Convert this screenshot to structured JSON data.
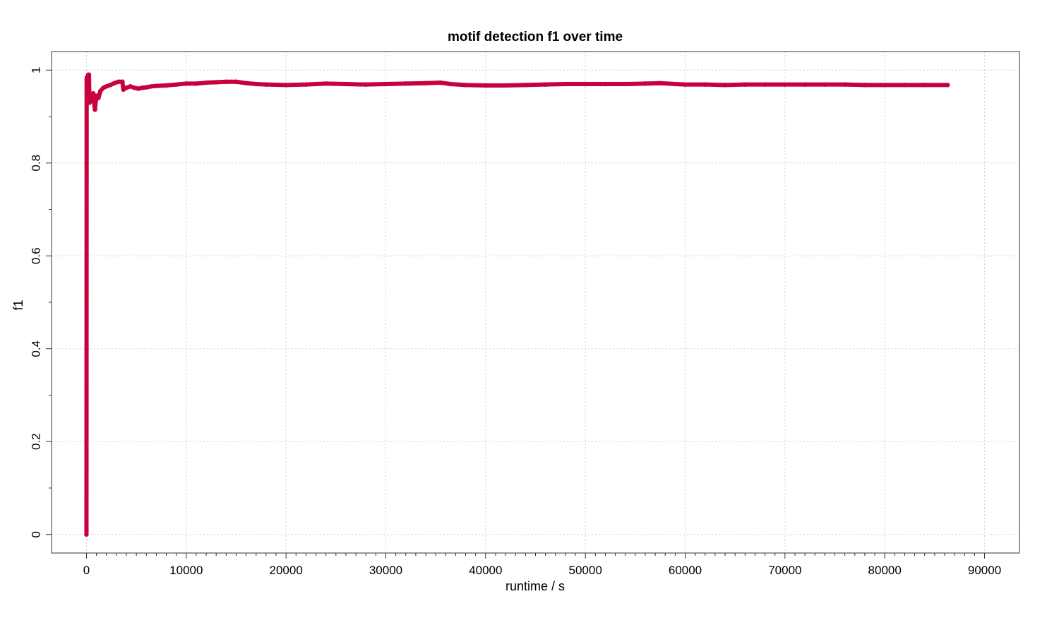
{
  "chart_data": {
    "type": "line",
    "title": "motif detection f1 over time",
    "xlabel": "runtime / s",
    "ylabel": "f1",
    "xlim": [
      -3500,
      93500
    ],
    "ylim": [
      -0.04,
      1.04
    ],
    "xticks": [
      0,
      10000,
      20000,
      30000,
      40000,
      50000,
      60000,
      70000,
      80000,
      90000
    ],
    "xtick_labels": [
      "0",
      "10000",
      "20000",
      "30000",
      "40000",
      "50000",
      "60000",
      "70000",
      "80000",
      "90000"
    ],
    "yticks": [
      0,
      0.2,
      0.4,
      0.6,
      0.8,
      1
    ],
    "ytick_labels": [
      "0",
      "0.2",
      "0.4",
      "0.6",
      "0.8",
      "1"
    ],
    "grid": true,
    "series": [
      {
        "color": "#c8003c",
        "points": [
          [
            0,
            0.0
          ],
          [
            20,
            0.98
          ],
          [
            60,
            0.985
          ],
          [
            120,
            0.975
          ],
          [
            180,
            0.99
          ],
          [
            250,
            0.99
          ],
          [
            300,
            0.93
          ],
          [
            420,
            0.935
          ],
          [
            520,
            0.94
          ],
          [
            600,
            0.945
          ],
          [
            680,
            0.95
          ],
          [
            760,
            0.93
          ],
          [
            850,
            0.915
          ],
          [
            950,
            0.935
          ],
          [
            1050,
            0.945
          ],
          [
            1200,
            0.94
          ],
          [
            1400,
            0.955
          ],
          [
            1700,
            0.962
          ],
          [
            2000,
            0.965
          ],
          [
            2400,
            0.968
          ],
          [
            2800,
            0.972
          ],
          [
            3200,
            0.975
          ],
          [
            3600,
            0.975
          ],
          [
            3700,
            0.958
          ],
          [
            4000,
            0.962
          ],
          [
            4400,
            0.965
          ],
          [
            4800,
            0.962
          ],
          [
            5200,
            0.96
          ],
          [
            5600,
            0.962
          ],
          [
            6000,
            0.963
          ],
          [
            6500,
            0.965
          ],
          [
            7000,
            0.966
          ],
          [
            8000,
            0.967
          ],
          [
            9000,
            0.969
          ],
          [
            10000,
            0.971
          ],
          [
            11000,
            0.971
          ],
          [
            12000,
            0.973
          ],
          [
            13000,
            0.974
          ],
          [
            14000,
            0.975
          ],
          [
            15000,
            0.975
          ],
          [
            16000,
            0.972
          ],
          [
            17000,
            0.97
          ],
          [
            18000,
            0.969
          ],
          [
            20000,
            0.968
          ],
          [
            22000,
            0.969
          ],
          [
            24000,
            0.971
          ],
          [
            26000,
            0.97
          ],
          [
            28000,
            0.969
          ],
          [
            30000,
            0.97
          ],
          [
            32000,
            0.971
          ],
          [
            34000,
            0.972
          ],
          [
            35500,
            0.973
          ],
          [
            36500,
            0.97
          ],
          [
            38000,
            0.968
          ],
          [
            40000,
            0.967
          ],
          [
            42000,
            0.967
          ],
          [
            44000,
            0.968
          ],
          [
            46000,
            0.969
          ],
          [
            48000,
            0.97
          ],
          [
            50000,
            0.97
          ],
          [
            52000,
            0.97
          ],
          [
            54000,
            0.97
          ],
          [
            56000,
            0.971
          ],
          [
            57500,
            0.972
          ],
          [
            59000,
            0.97
          ],
          [
            60000,
            0.969
          ],
          [
            62000,
            0.969
          ],
          [
            64000,
            0.968
          ],
          [
            66000,
            0.969
          ],
          [
            68000,
            0.969
          ],
          [
            70000,
            0.969
          ],
          [
            72000,
            0.969
          ],
          [
            74000,
            0.969
          ],
          [
            76000,
            0.969
          ],
          [
            78000,
            0.968
          ],
          [
            80000,
            0.968
          ],
          [
            82000,
            0.968
          ],
          [
            84000,
            0.968
          ],
          [
            86300,
            0.968
          ]
        ]
      }
    ]
  }
}
